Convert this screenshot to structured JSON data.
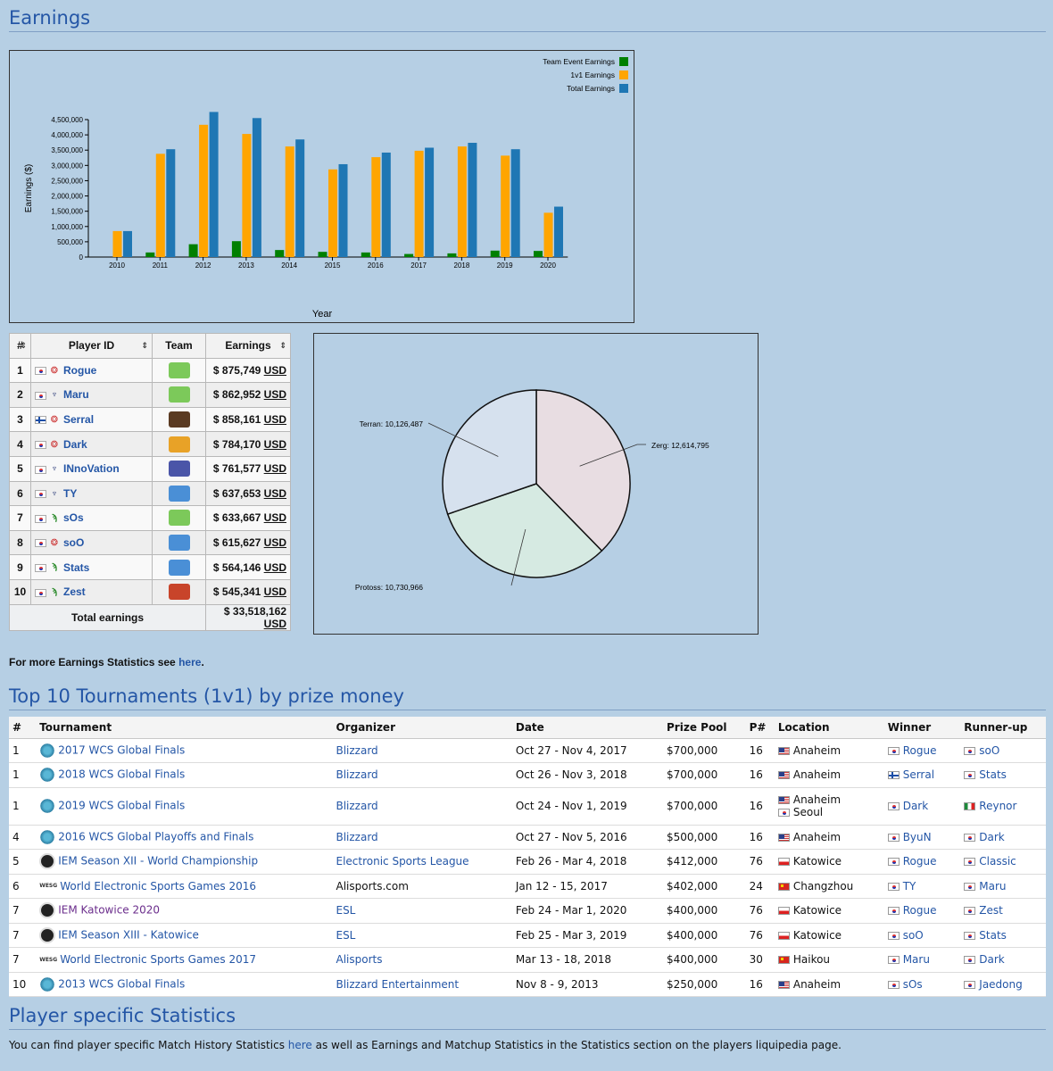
{
  "sections": {
    "earnings_title": "Earnings",
    "tournaments_title": "Top 10 Tournaments (1v1) by prize money",
    "player_title": "Player specific Statistics"
  },
  "chart_data": [
    {
      "type": "bar",
      "title": "",
      "xlabel": "Year",
      "ylabel": "Earnings ($)",
      "ylim": [
        0,
        4500000
      ],
      "yticks": [
        "0",
        "500,000",
        "1,000,000",
        "1,500,000",
        "2,000,000",
        "2,500,000",
        "3,000,000",
        "3,500,000",
        "4,000,000",
        "4,500,000"
      ],
      "categories": [
        "2010",
        "2011",
        "2012",
        "2013",
        "2014",
        "2015",
        "2016",
        "2017",
        "2018",
        "2019",
        "2020"
      ],
      "legend_position": "top-right",
      "series": [
        {
          "name": "Team Event Earnings",
          "color": "#008000",
          "values": [
            0,
            150000,
            420000,
            520000,
            230000,
            170000,
            150000,
            100000,
            120000,
            210000,
            200000
          ]
        },
        {
          "name": "1v1 Earnings",
          "color": "#ffa500",
          "values": [
            850000,
            3380000,
            4330000,
            4030000,
            3620000,
            2870000,
            3270000,
            3480000,
            3620000,
            3320000,
            1450000
          ]
        },
        {
          "name": "Total Earnings",
          "color": "#1f77b4",
          "values": [
            850000,
            3530000,
            4750000,
            4550000,
            3850000,
            3040000,
            3420000,
            3580000,
            3740000,
            3530000,
            1650000
          ]
        }
      ]
    },
    {
      "type": "pie",
      "title": "",
      "slices": [
        {
          "label": "Zerg",
          "value": 12614795,
          "display": "Zerg: 12,614,795",
          "color": "#e8dde2"
        },
        {
          "label": "Protoss",
          "value": 10730966,
          "display": "Protoss: 10,730,966",
          "color": "#d6eae2"
        },
        {
          "label": "Terran",
          "value": 10126487,
          "display": "Terran: 10,126,487",
          "color": "#d6e1ee"
        }
      ]
    }
  ],
  "earnings_table": {
    "headers": {
      "rank": "#",
      "player": "Player ID",
      "team": "Team",
      "earnings": "Earnings"
    },
    "rows": [
      {
        "rank": "1",
        "flag": "kr",
        "race": "zerg",
        "name": "Rogue",
        "team_color": "#7cc95a",
        "amount": "$ 875,749",
        "currency": "USD"
      },
      {
        "rank": "2",
        "flag": "kr",
        "race": "terran",
        "name": "Maru",
        "team_color": "#7cc95a",
        "amount": "$ 862,952",
        "currency": "USD"
      },
      {
        "rank": "3",
        "flag": "fi",
        "race": "zerg",
        "name": "Serral",
        "team_color": "#5a3a22",
        "amount": "$ 858,161",
        "currency": "USD"
      },
      {
        "rank": "4",
        "flag": "kr",
        "race": "zerg",
        "name": "Dark",
        "team_color": "#e8a227",
        "amount": "$ 784,170",
        "currency": "USD"
      },
      {
        "rank": "5",
        "flag": "kr",
        "race": "terran",
        "name": "INnoVation",
        "team_color": "#4a55a8",
        "amount": "$ 761,577",
        "currency": "USD"
      },
      {
        "rank": "6",
        "flag": "kr",
        "race": "terran",
        "name": "TY",
        "team_color": "#4a8fd6",
        "amount": "$ 637,653",
        "currency": "USD"
      },
      {
        "rank": "7",
        "flag": "kr",
        "race": "protoss",
        "name": "sOs",
        "team_color": "#7cc95a",
        "amount": "$ 633,667",
        "currency": "USD"
      },
      {
        "rank": "8",
        "flag": "kr",
        "race": "zerg",
        "name": "soO",
        "team_color": "#4a8fd6",
        "amount": "$ 615,627",
        "currency": "USD"
      },
      {
        "rank": "9",
        "flag": "kr",
        "race": "protoss",
        "name": "Stats",
        "team_color": "#4a8fd6",
        "amount": "$ 564,146",
        "currency": "USD"
      },
      {
        "rank": "10",
        "flag": "kr",
        "race": "protoss",
        "name": "Zest",
        "team_color": "#c8442a",
        "amount": "$ 545,341",
        "currency": "USD"
      }
    ],
    "total_label": "Total earnings",
    "total_amount": "$ 33,518,162",
    "total_currency": "USD"
  },
  "more_stats": {
    "prefix": "For more Earnings Statistics see ",
    "link": "here",
    "suffix": "."
  },
  "tournaments": {
    "headers": [
      "#",
      "Tournament",
      "Organizer",
      "Date",
      "Prize Pool",
      "P#",
      "Location",
      "Winner",
      "Runner-up"
    ],
    "rows": [
      {
        "rank": "1",
        "icon": "wcs",
        "name": "2017 WCS Global Finals",
        "organizer": "Blizzard",
        "org_link": true,
        "date": "Oct 27 - Nov 4, 2017",
        "prize": "$700,000",
        "players": "16",
        "locations": [
          {
            "flag": "us",
            "name": "Anaheim"
          }
        ],
        "winner": {
          "flag": "kr",
          "name": "Rogue"
        },
        "runner": {
          "flag": "kr",
          "name": "soO"
        }
      },
      {
        "rank": "1",
        "icon": "wcs",
        "name": "2018 WCS Global Finals",
        "organizer": "Blizzard",
        "org_link": true,
        "date": "Oct 26 - Nov 3, 2018",
        "prize": "$700,000",
        "players": "16",
        "locations": [
          {
            "flag": "us",
            "name": "Anaheim"
          }
        ],
        "winner": {
          "flag": "fi",
          "name": "Serral"
        },
        "runner": {
          "flag": "kr",
          "name": "Stats"
        }
      },
      {
        "rank": "1",
        "icon": "wcs",
        "name": "2019 WCS Global Finals",
        "organizer": "Blizzard",
        "org_link": true,
        "date": "Oct 24 - Nov 1, 2019",
        "prize": "$700,000",
        "players": "16",
        "locations": [
          {
            "flag": "us",
            "name": "Anaheim"
          },
          {
            "flag": "kr",
            "name": "Seoul"
          }
        ],
        "winner": {
          "flag": "kr",
          "name": "Dark"
        },
        "runner": {
          "flag": "it",
          "name": "Reynor"
        }
      },
      {
        "rank": "4",
        "icon": "wcs",
        "name": "2016 WCS Global Playoffs and Finals",
        "organizer": "Blizzard",
        "org_link": true,
        "date": "Oct 27 - Nov 5, 2016",
        "prize": "$500,000",
        "players": "16",
        "locations": [
          {
            "flag": "us",
            "name": "Anaheim"
          }
        ],
        "winner": {
          "flag": "kr",
          "name": "ByuN"
        },
        "runner": {
          "flag": "kr",
          "name": "Dark"
        }
      },
      {
        "rank": "5",
        "icon": "iem",
        "name": "IEM Season XII - World Championship",
        "organizer": "Electronic Sports League",
        "org_link": true,
        "date": "Feb 26 - Mar 4, 2018",
        "prize": "$412,000",
        "players": "76",
        "locations": [
          {
            "flag": "pl",
            "name": "Katowice"
          }
        ],
        "winner": {
          "flag": "kr",
          "name": "Rogue"
        },
        "runner": {
          "flag": "kr",
          "name": "Classic"
        }
      },
      {
        "rank": "6",
        "icon": "wesg",
        "name": "World Electronic Sports Games 2016",
        "organizer": "Alisports.com",
        "org_link": false,
        "date": "Jan 12 - 15, 2017",
        "prize": "$402,000",
        "players": "24",
        "locations": [
          {
            "flag": "cn",
            "name": "Changzhou"
          }
        ],
        "winner": {
          "flag": "kr",
          "name": "TY"
        },
        "runner": {
          "flag": "kr",
          "name": "Maru"
        }
      },
      {
        "rank": "7",
        "icon": "iem",
        "name": "IEM Katowice 2020",
        "visited": true,
        "organizer": "ESL",
        "org_link": true,
        "date": "Feb 24 - Mar 1, 2020",
        "prize": "$400,000",
        "players": "76",
        "locations": [
          {
            "flag": "pl",
            "name": "Katowice"
          }
        ],
        "winner": {
          "flag": "kr",
          "name": "Rogue"
        },
        "runner": {
          "flag": "kr",
          "name": "Zest"
        }
      },
      {
        "rank": "7",
        "icon": "iem",
        "name": "IEM Season XIII - Katowice",
        "organizer": "ESL",
        "org_link": true,
        "date": "Feb 25 - Mar 3, 2019",
        "prize": "$400,000",
        "players": "76",
        "locations": [
          {
            "flag": "pl",
            "name": "Katowice"
          }
        ],
        "winner": {
          "flag": "kr",
          "name": "soO"
        },
        "runner": {
          "flag": "kr",
          "name": "Stats"
        }
      },
      {
        "rank": "7",
        "icon": "wesg",
        "name": "World Electronic Sports Games 2017",
        "organizer": "Alisports",
        "org_link": true,
        "date": "Mar 13 - 18, 2018",
        "prize": "$400,000",
        "players": "30",
        "locations": [
          {
            "flag": "cn",
            "name": "Haikou"
          }
        ],
        "winner": {
          "flag": "kr",
          "name": "Maru"
        },
        "runner": {
          "flag": "kr",
          "name": "Dark"
        }
      },
      {
        "rank": "10",
        "icon": "wcs",
        "name": "2013 WCS Global Finals",
        "organizer": "Blizzard Entertainment",
        "org_link": true,
        "date": "Nov 8 - 9, 2013",
        "prize": "$250,000",
        "players": "16",
        "locations": [
          {
            "flag": "us",
            "name": "Anaheim"
          }
        ],
        "winner": {
          "flag": "kr",
          "name": "sOs"
        },
        "runner": {
          "flag": "kr",
          "name": "Jaedong"
        }
      }
    ]
  },
  "player_text": {
    "prefix": "You can find player specific Match History Statistics ",
    "link": "here",
    "suffix": " as well as Earnings and Matchup Statistics in the Statistics section on the players liquipedia page."
  },
  "icons": {
    "wesg_text": "WESG",
    "sort": "⇕"
  }
}
